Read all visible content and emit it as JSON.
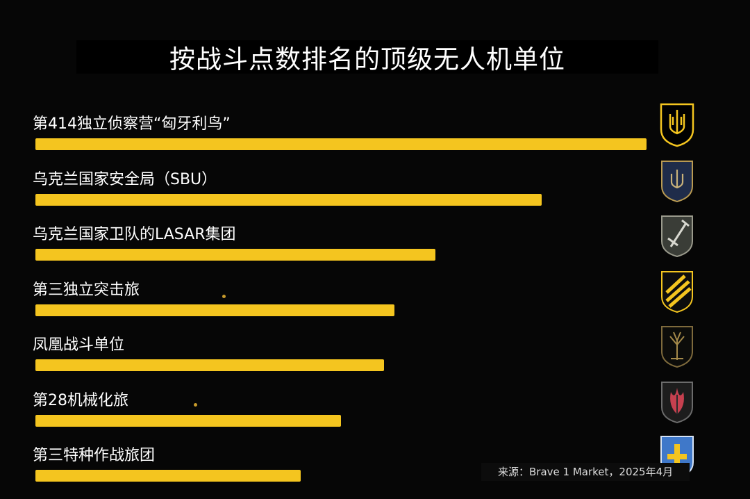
{
  "title": "按战斗点数排名的顶级无人机单位",
  "source_label": "来源：Brave 1 Market，2025年4月",
  "colors": {
    "bar": "#f4c51f",
    "background": "#060606",
    "text": "#ffffff"
  },
  "chart_data": {
    "type": "bar",
    "orientation": "horizontal",
    "title": "按战斗点数排名的顶级无人机单位",
    "categories": [
      "第414独立侦察营“匈牙利鸟”",
      "乌克兰国家安全局（SBU）",
      "乌克兰国家卫队的LASAR集团",
      "第三独立突击旅",
      "凤凰战斗单位",
      "第28机械化旅",
      "第三特种作战旅团"
    ],
    "values": [
      100,
      82.8,
      65.4,
      58.8,
      57.0,
      50.0,
      43.4
    ],
    "value_unit": "relative (% of top unit)",
    "xlim": [
      0,
      100
    ],
    "grid": false,
    "legend": "none",
    "icons": [
      "trident-shield-icon",
      "sbu-shield-icon",
      "sword-shield-icon",
      "striped-shield-icon",
      "tree-shield-icon",
      "flame-shield-icon",
      "cross-shield-icon"
    ]
  }
}
